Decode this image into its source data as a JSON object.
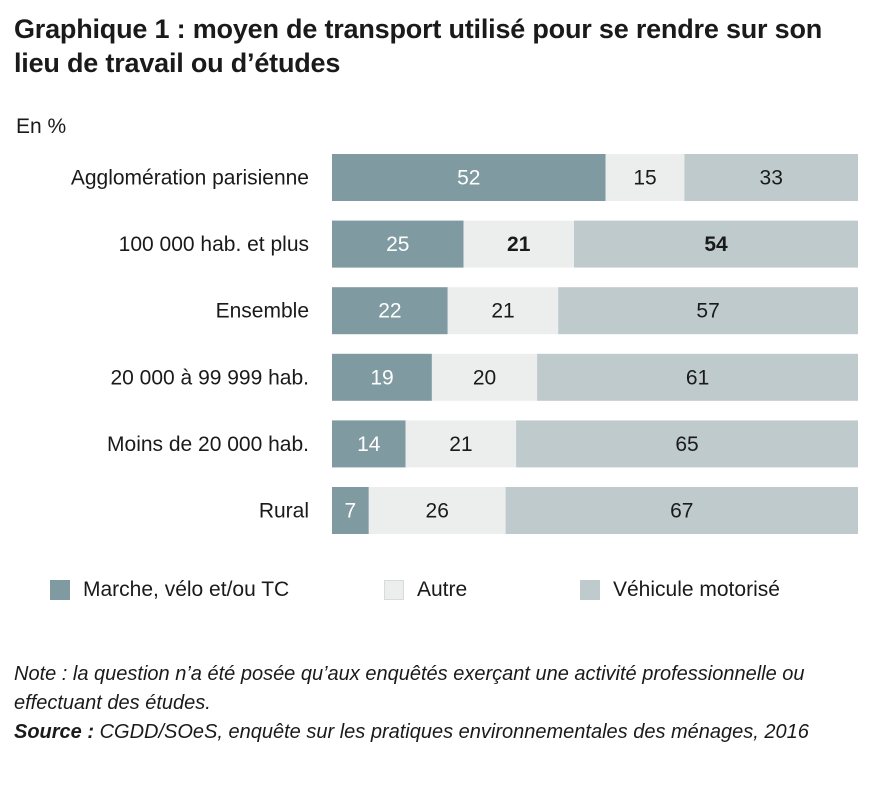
{
  "title": "Graphique 1 : moyen de transport utilisé pour se rendre sur son lieu de travail ou d’études",
  "unit_label": "En %",
  "colors": {
    "marche": "#7f9ba1",
    "autre": "#eceeee",
    "vehicule": "#bfcacc",
    "label_on_dark": "#ffffff",
    "label_on_light": "#1a1a1a"
  },
  "chart_data": {
    "type": "bar",
    "orientation": "horizontal",
    "stacked": true,
    "categories": [
      "Agglomération parisienne",
      "100 000 hab. et plus",
      "Ensemble",
      "20 000 à 99 999 hab.",
      "Moins de 20 000 hab.",
      "Rural"
    ],
    "series": [
      {
        "name": "Marche, vélo et/ou TC",
        "values": [
          52,
          25,
          22,
          19,
          14,
          7
        ]
      },
      {
        "name": "Autre",
        "values": [
          15,
          21,
          21,
          20,
          21,
          26
        ]
      },
      {
        "name": "Véhicule motorisé",
        "values": [
          33,
          54,
          57,
          61,
          65,
          67
        ]
      }
    ],
    "bold_labels": [
      [
        1,
        1
      ],
      [
        1,
        2
      ]
    ],
    "xlim": [
      0,
      100
    ],
    "grid": false,
    "legend_position": "bottom"
  },
  "note": {
    "note_text": "Note : la question n’a été posée qu’aux enquêtés exerçant une activité professionnelle ou effectuant des études.",
    "source_label": "Source :",
    "source_text": " CGDD/SOeS, enquête sur les pratiques environnementales des ménages, 2016"
  }
}
